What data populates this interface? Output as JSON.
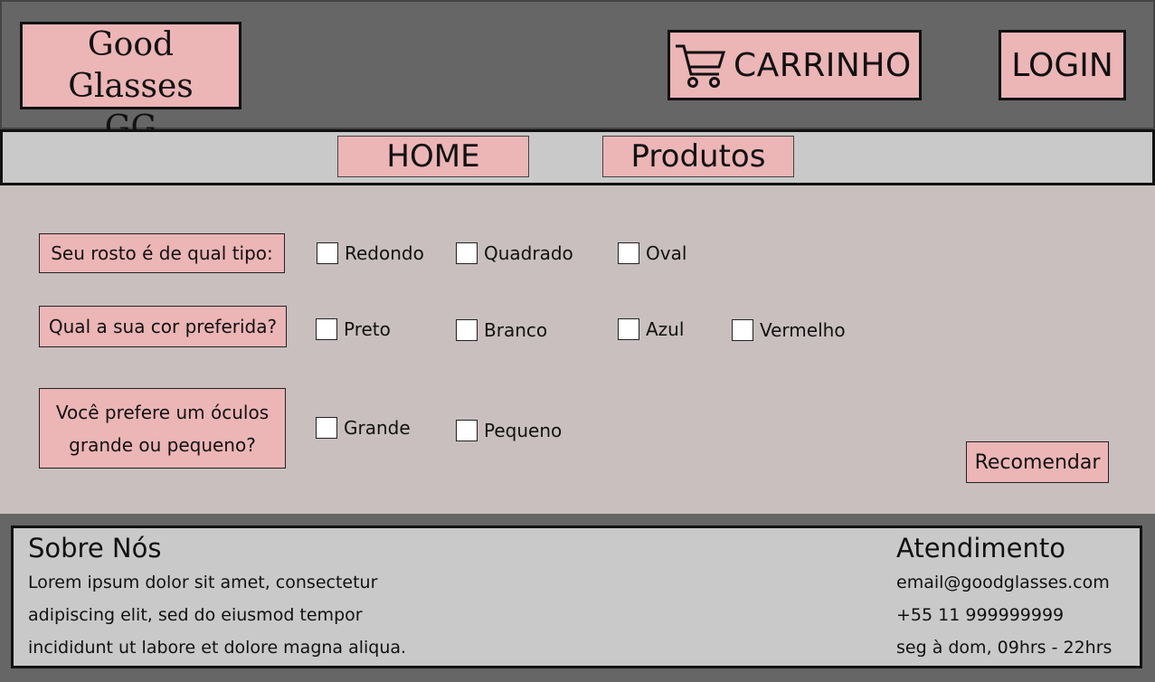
{
  "header": {
    "logo_line1": "Good Glasses",
    "logo_line2": "GG",
    "cart_label": "CARRINHO",
    "login_label": "LOGIN"
  },
  "nav": {
    "home_label": "HOME",
    "produtos_label": "Produtos"
  },
  "questions": [
    {
      "label": "Seu rosto é de qual tipo:",
      "options": [
        "Redondo",
        "Quadrado",
        "Oval"
      ]
    },
    {
      "label": "Qual a sua cor preferida?",
      "options": [
        "Preto",
        "Branco",
        "Azul",
        "Vermelho"
      ]
    },
    {
      "label": "Você prefere um óculos grande ou pequeno?",
      "options": [
        "Grande",
        "Pequeno"
      ]
    }
  ],
  "recommend_label": "Recomendar",
  "footer": {
    "about_title": "Sobre Nós",
    "about_lines": [
      "Lorem ipsum dolor sit amet, consectetur",
      "adipiscing elit, sed do eiusmod tempor",
      "incididunt ut labore et dolore magna aliqua."
    ],
    "service_title": "Atendimento",
    "service_lines": [
      "email@goodglasses.com",
      "+55 11 999999999",
      "seg à dom, 09hrs - 22hrs"
    ]
  },
  "icons": {
    "cart": "shopping-cart-icon"
  },
  "colors": {
    "header_bg": "#666666",
    "accent_pink": "#ecb5b6",
    "nav_bg": "#c9c9c9",
    "content_bg": "#c8bfbe"
  }
}
